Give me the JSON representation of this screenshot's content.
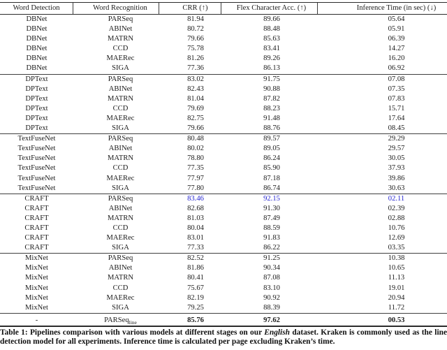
{
  "page": {
    "background": "#ffffff",
    "text_color": "#1b1b1b",
    "accent_blue": "#2424cf"
  },
  "table": {
    "columns": [
      {
        "label": "Word Detection"
      },
      {
        "label": "Word Recognition"
      },
      {
        "label": "CRR (↑)"
      },
      {
        "label": "Flex Character Acc. (↑)"
      },
      {
        "label": "Inference Time (in sec) (↓)"
      }
    ],
    "groups": [
      {
        "rows": [
          {
            "cells": [
              "DBNet",
              "PARSeq",
              "81.94",
              "89.66",
              "05.64"
            ]
          },
          {
            "cells": [
              "DBNet",
              "ABINet",
              "80.72",
              "88.48",
              "05.91"
            ]
          },
          {
            "cells": [
              "DBNet",
              "MATRN",
              "79.66",
              "85.63",
              "06.39"
            ]
          },
          {
            "cells": [
              "DBNet",
              "CCD",
              "75.78",
              "83.41",
              "14.27"
            ]
          },
          {
            "cells": [
              "DBNet",
              "MAERec",
              "81.26",
              "89.26",
              "16.20"
            ]
          },
          {
            "cells": [
              "DBNet",
              "SIGA",
              "77.36",
              "86.13",
              "06.92"
            ]
          }
        ]
      },
      {
        "rows": [
          {
            "cells": [
              "DPText",
              "PARSeq",
              "83.02",
              "91.75",
              "07.08"
            ]
          },
          {
            "cells": [
              "DPText",
              "ABINet",
              "82.43",
              "90.88",
              "07.35"
            ]
          },
          {
            "cells": [
              "DPText",
              "MATRN",
              "81.04",
              "87.82",
              "07.83"
            ]
          },
          {
            "cells": [
              "DPText",
              "CCD",
              "79.69",
              "88.23",
              "15.71"
            ]
          },
          {
            "cells": [
              "DPText",
              "MAERec",
              "82.75",
              "91.48",
              "17.64"
            ]
          },
          {
            "cells": [
              "DPText",
              "SIGA",
              "79.66",
              "88.76",
              "08.45"
            ]
          }
        ]
      },
      {
        "rows": [
          {
            "cells": [
              "TextFuseNet",
              "PARSeq",
              "80.48",
              "89.57",
              "29.29"
            ]
          },
          {
            "cells": [
              "TextFuseNet",
              "ABINet",
              "80.02",
              "89.05",
              "29.57"
            ]
          },
          {
            "cells": [
              "TextFuseNet",
              "MATRN",
              "78.80",
              "86.24",
              "30.05"
            ]
          },
          {
            "cells": [
              "TextFuseNet",
              "CCD",
              "77.35",
              "85.90",
              "37.93"
            ]
          },
          {
            "cells": [
              "TextFuseNet",
              "MAERec",
              "77.97",
              "87.18",
              "39.86"
            ]
          },
          {
            "cells": [
              "TextFuseNet",
              "SIGA",
              "77.80",
              "86.74",
              "30.63"
            ]
          }
        ]
      },
      {
        "rows": [
          {
            "cells": [
              "CRAFT",
              "PARSeq",
              "83.46",
              "92.15",
              "02.11"
            ],
            "highlight": true
          },
          {
            "cells": [
              "CRAFT",
              "ABINet",
              "82.68",
              "91.30",
              "02.39"
            ]
          },
          {
            "cells": [
              "CRAFT",
              "MATRN",
              "81.03",
              "87.49",
              "02.88"
            ]
          },
          {
            "cells": [
              "CRAFT",
              "CCD",
              "80.04",
              "88.59",
              "10.76"
            ]
          },
          {
            "cells": [
              "CRAFT",
              "MAERec",
              "83.01",
              "91.83",
              "12.69"
            ]
          },
          {
            "cells": [
              "CRAFT",
              "SIGA",
              "77.33",
              "86.22",
              "03.35"
            ]
          }
        ]
      },
      {
        "rows": [
          {
            "cells": [
              "MixNet",
              "PARSeq",
              "82.52",
              "91.25",
              "10.38"
            ]
          },
          {
            "cells": [
              "MixNet",
              "ABINet",
              "81.86",
              "90.34",
              "10.65"
            ]
          },
          {
            "cells": [
              "MixNet",
              "MATRN",
              "80.41",
              "87.08",
              "11.13"
            ]
          },
          {
            "cells": [
              "MixNet",
              "CCD",
              "75.67",
              "83.10",
              "19.01"
            ]
          },
          {
            "cells": [
              "MixNet",
              "MAERec",
              "82.19",
              "90.92",
              "20.94"
            ]
          },
          {
            "cells": [
              "MixNet",
              "SIGA",
              "79.25",
              "88.39",
              "11.72"
            ]
          }
        ]
      }
    ],
    "footer_row": {
      "detection": "-",
      "recognition_base": "PARSeq",
      "recognition_sub": "line",
      "crr": "85.76",
      "flex": "97.62",
      "time": "00.53"
    }
  },
  "caption": {
    "part1": "Table 1: Pipelines comparison with various models at different stages on our ",
    "emphasis": "English",
    "part2": " dataset. Kraken is commonly used as the line detection model for all experiments. Inference time is calculated per page excluding Kraken’s time."
  }
}
